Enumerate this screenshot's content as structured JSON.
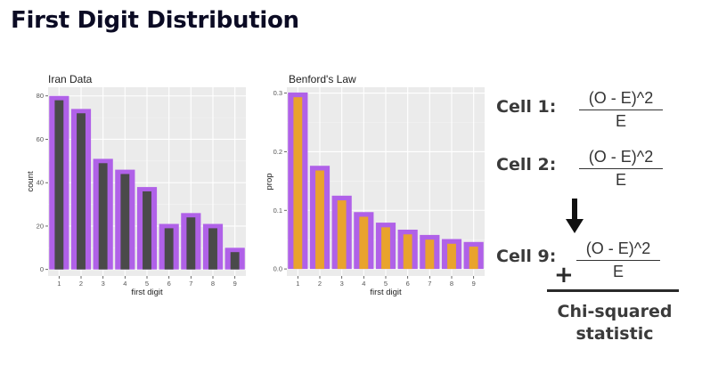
{
  "title": "First Digit Distribution",
  "chart_data": [
    {
      "type": "bar",
      "title": "Iran Data",
      "xlabel": "first digit",
      "ylabel": "count",
      "categories": [
        "1",
        "2",
        "3",
        "4",
        "5",
        "6",
        "7",
        "8",
        "9"
      ],
      "series": [
        {
          "values": [
            80,
            74,
            51,
            46,
            38,
            21,
            26,
            21,
            10
          ],
          "color": "#b061e8"
        },
        {
          "values": [
            78,
            72,
            49,
            44,
            36,
            19,
            24,
            19,
            8
          ],
          "color": "#4a4a4a"
        }
      ],
      "yticks": [
        "0",
        "20",
        "40",
        "60",
        "80"
      ],
      "ylim": [
        -3,
        84
      ],
      "grid": true
    },
    {
      "type": "bar",
      "title": "Benford's Law",
      "xlabel": "first digit",
      "ylabel": "prop",
      "categories": [
        "1",
        "2",
        "3",
        "4",
        "5",
        "6",
        "7",
        "8",
        "9"
      ],
      "series": [
        {
          "values": [
            0.301,
            0.176,
            0.125,
            0.097,
            0.079,
            0.067,
            0.058,
            0.051,
            0.046
          ],
          "color": "#b061e8"
        },
        {
          "values": [
            0.293,
            0.168,
            0.117,
            0.089,
            0.071,
            0.059,
            0.05,
            0.043,
            0.038
          ],
          "color": "#e9a32d"
        }
      ],
      "yticks": [
        "0.0",
        "0.1",
        "0.2",
        "0.3"
      ],
      "ylim": [
        -0.012,
        0.31
      ],
      "grid": true
    }
  ],
  "formula": {
    "cell1_label": "Cell 1:",
    "cell2_label": "Cell 2:",
    "cell9_label": "Cell 9:",
    "numerator": "(O - E)^2",
    "denominator": "E",
    "plus": "+",
    "result_line1": "Chi-squared",
    "result_line2": "statistic"
  }
}
